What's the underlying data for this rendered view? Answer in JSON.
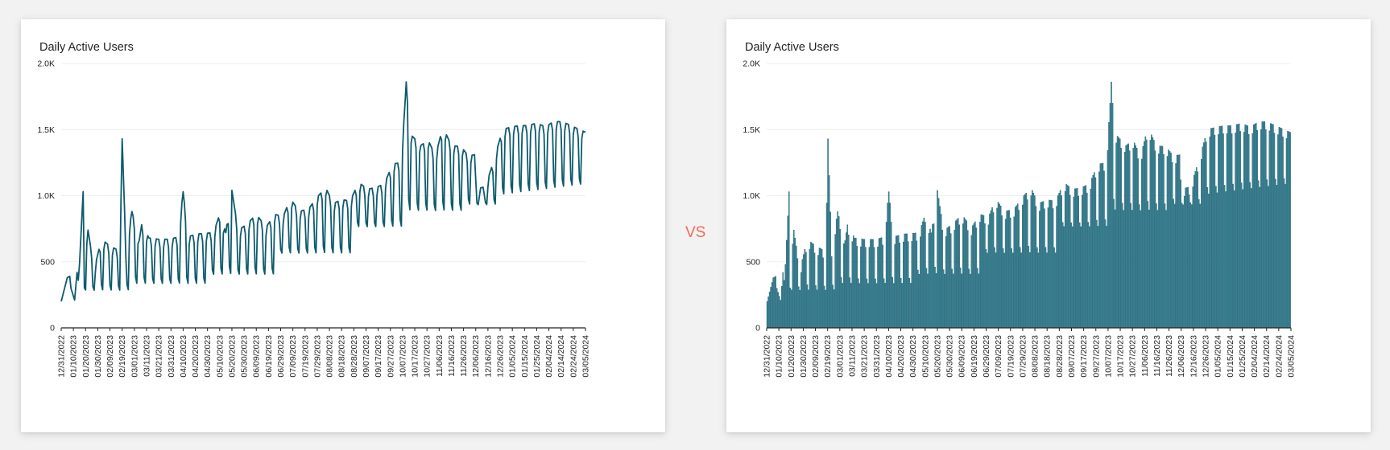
{
  "vs_label": "VS",
  "colors": {
    "line": "#0d5a6d",
    "bar_fill": "#3d8797",
    "bar_stroke": "#14566a",
    "grid": "#eeeeee",
    "axis": "#222222",
    "vs": "#ef6a5a"
  },
  "chart_data": [
    {
      "type": "line",
      "title": "Daily Active Users",
      "xlabel": "",
      "ylabel": "",
      "ylim": [
        0,
        2000
      ],
      "y_ticks": [
        0,
        500,
        1000,
        1500,
        2000
      ],
      "y_tick_labels": [
        "0",
        "500",
        "1.0K",
        "1.5K",
        "2.0K"
      ],
      "x_ticks": [
        "12/31/2022",
        "01/10/2023",
        "01/20/2023",
        "01/30/2023",
        "02/09/2023",
        "02/19/2023",
        "03/01/2023",
        "03/11/2023",
        "03/21/2023",
        "03/31/2023",
        "04/10/2023",
        "04/20/2023",
        "04/30/2023",
        "05/10/2023",
        "05/20/2023",
        "05/30/2023",
        "06/09/2023",
        "06/19/2023",
        "06/29/2023",
        "07/09/2023",
        "07/19/2023",
        "07/29/2023",
        "08/08/2023",
        "08/18/2023",
        "08/28/2023",
        "09/07/2023",
        "09/17/2023",
        "09/27/2023",
        "10/07/2023",
        "10/17/2023",
        "10/27/2023",
        "11/06/2023",
        "11/16/2023",
        "11/26/2023",
        "12/06/2023",
        "12/16/2023",
        "12/26/2023",
        "01/05/2024",
        "01/15/2024",
        "01/25/2024",
        "02/04/2024",
        "02/14/2024",
        "02/24/2024",
        "03/05/2024"
      ],
      "grid": true,
      "series": [
        {
          "x_start": "12/31/2022",
          "x_step_days": 1,
          "values": []
        }
      ]
    },
    {
      "type": "bar",
      "title": "Daily Active Users",
      "xlabel": "",
      "ylabel": "",
      "ylim": [
        0,
        2000
      ],
      "y_ticks": [
        0,
        500,
        1000,
        1500,
        2000
      ],
      "y_tick_labels": [
        "0",
        "500",
        "1.0K",
        "1.5K",
        "2.0K"
      ],
      "x_ticks": [
        "12/31/2022",
        "01/10/2023",
        "01/20/2023",
        "01/30/2023",
        "02/09/2023",
        "02/19/2023",
        "03/01/2023",
        "03/11/2023",
        "03/21/2023",
        "03/31/2023",
        "04/10/2023",
        "04/20/2023",
        "04/30/2023",
        "05/10/2023",
        "05/20/2023",
        "05/30/2023",
        "06/09/2023",
        "06/19/2023",
        "06/29/2023",
        "07/09/2023",
        "07/19/2023",
        "07/29/2023",
        "08/08/2023",
        "08/18/2023",
        "08/28/2023",
        "09/07/2023",
        "09/17/2023",
        "09/27/2023",
        "10/07/2023",
        "10/17/2023",
        "10/27/2023",
        "11/06/2023",
        "11/16/2023",
        "11/26/2023",
        "12/06/2023",
        "12/16/2023",
        "12/26/2023",
        "01/05/2024",
        "01/15/2024",
        "01/25/2024",
        "02/04/2024",
        "02/14/2024",
        "02/24/2024",
        "03/05/2024"
      ],
      "grid": true,
      "series": [
        {
          "x_start": "12/31/2022",
          "x_step_days": 1,
          "values": []
        }
      ]
    }
  ]
}
